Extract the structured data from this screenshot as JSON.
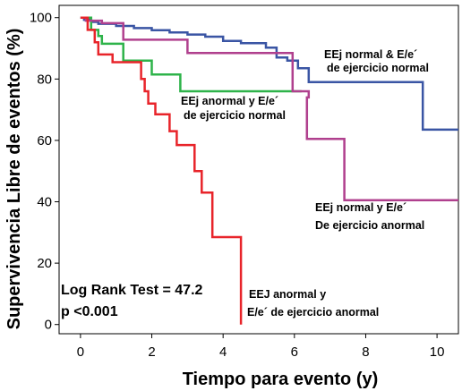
{
  "chart_data": {
    "type": "line",
    "subtype": "kaplan-meier-step",
    "xlabel": "Tiempo para evento (y)",
    "ylabel": "Supervivencia Libre de eventos (%)",
    "xlim": [
      -0.6,
      10.6
    ],
    "ylim": [
      -3,
      104
    ],
    "xticks": [
      0,
      2,
      4,
      6,
      8,
      10
    ],
    "yticks": [
      0,
      20,
      40,
      60,
      80,
      100
    ],
    "grid": false,
    "stat_lines": [
      "Log Rank Test = 47.2",
      "p <0.001"
    ],
    "series": [
      {
        "name": "EEj normal & E/e´ de ejercicio normal",
        "label_lines": [
          "EEj normal & E/e´",
          "de ejercicio normal"
        ],
        "color": "#3a55a4",
        "points": [
          [
            0,
            100
          ],
          [
            0.1,
            99.3
          ],
          [
            0.3,
            98.6
          ],
          [
            0.5,
            98
          ],
          [
            1,
            97.3
          ],
          [
            1.5,
            96.6
          ],
          [
            2,
            95.9
          ],
          [
            2.5,
            95.2
          ],
          [
            3,
            94.5
          ],
          [
            3.5,
            93.8
          ],
          [
            4,
            92.4
          ],
          [
            4.5,
            91.7
          ],
          [
            5.2,
            90.2
          ],
          [
            5.5,
            87
          ],
          [
            5.8,
            86
          ],
          [
            6.1,
            83.5
          ],
          [
            6.3,
            83.5
          ],
          [
            6.4,
            79
          ],
          [
            9.6,
            79
          ],
          [
            9.6,
            63.5
          ],
          [
            10.6,
            63.5
          ]
        ]
      },
      {
        "name": "EEj anormal y E/e´ de ejercicio normal",
        "label_lines": [
          "EEj anormal y E/e´",
          "de ejercicio normal"
        ],
        "color": "#2eb34a",
        "points": [
          [
            0,
            100
          ],
          [
            0.3,
            96
          ],
          [
            0.5,
            94
          ],
          [
            0.6,
            91.5
          ],
          [
            1.2,
            86
          ],
          [
            2,
            81.5
          ],
          [
            2.8,
            76
          ],
          [
            6.2,
            76
          ]
        ]
      },
      {
        "name": "EEj normal y E/e´ De ejercicio anormal",
        "label_lines": [
          "EEj normal y E/e´",
          "De ejercicio anormal"
        ],
        "color": "#b0408e",
        "points": [
          [
            0,
            100
          ],
          [
            0.15,
            99
          ],
          [
            0.6,
            98.2
          ],
          [
            1.2,
            92.8
          ],
          [
            2.9,
            92.8
          ],
          [
            3,
            88.5
          ],
          [
            5.95,
            88.5
          ],
          [
            5.95,
            76
          ],
          [
            6.4,
            76
          ],
          [
            6.4,
            74
          ],
          [
            6.35,
            74
          ],
          [
            6.35,
            60.5
          ],
          [
            7.4,
            60.5
          ],
          [
            7.4,
            40.5
          ],
          [
            10.6,
            40.5
          ]
        ]
      },
      {
        "name": "EEJ anormal y E/e´ de ejercicio anormal",
        "label_lines": [
          "EEJ anormal y",
          "E/e´ de ejercicio anormal"
        ],
        "color": "#e8242a",
        "points": [
          [
            0,
            100
          ],
          [
            0.2,
            96
          ],
          [
            0.4,
            92
          ],
          [
            0.5,
            88
          ],
          [
            0.9,
            85.5
          ],
          [
            1.7,
            80
          ],
          [
            1.8,
            76
          ],
          [
            1.9,
            72
          ],
          [
            2.1,
            68.5
          ],
          [
            2.5,
            63
          ],
          [
            2.7,
            58.5
          ],
          [
            3.2,
            58.5
          ],
          [
            3.2,
            50
          ],
          [
            3.4,
            43
          ],
          [
            3.7,
            43
          ],
          [
            3.7,
            28.5
          ],
          [
            4.5,
            28.5
          ],
          [
            4.5,
            0
          ]
        ]
      }
    ]
  }
}
